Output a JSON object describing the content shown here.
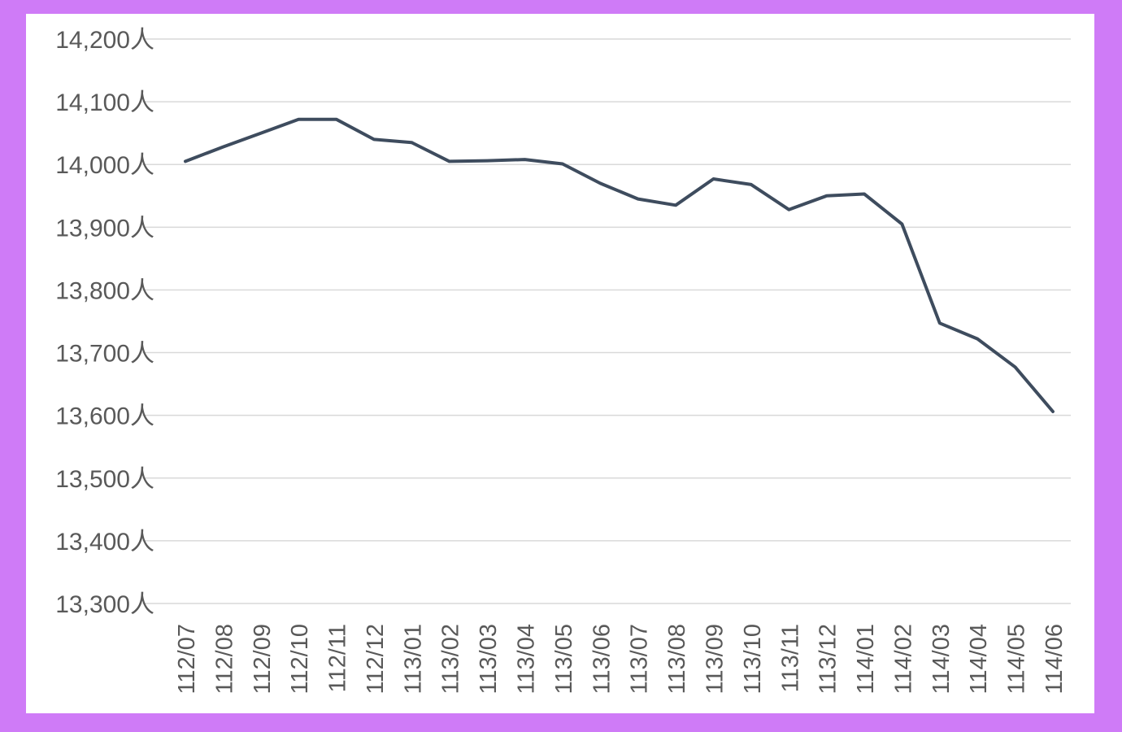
{
  "colors": {
    "frame": "#cf7bf7",
    "background": "#ffffff",
    "line": "#3e4c5e",
    "grid": "#d9d9d9",
    "text": "#595959"
  },
  "chart_data": {
    "type": "line",
    "title": "",
    "xlabel": "",
    "ylabel": "",
    "ylim": [
      13300,
      14200
    ],
    "ytick_step": 100,
    "ytick_suffix": "人",
    "grid": true,
    "legend": "none",
    "categories": [
      "112/07",
      "112/08",
      "112/09",
      "112/10",
      "112/11",
      "112/12",
      "113/01",
      "113/02",
      "113/03",
      "113/04",
      "113/05",
      "113/06",
      "113/07",
      "113/08",
      "113/09",
      "113/10",
      "113/11",
      "113/12",
      "114/01",
      "114/02",
      "114/03",
      "114/04",
      "114/05",
      "114/06"
    ],
    "series": [
      {
        "values": [
          14005,
          14028,
          14050,
          14072,
          14072,
          14040,
          14035,
          14005,
          14006,
          14008,
          14001,
          13970,
          13945,
          13935,
          13977,
          13968,
          13928,
          13950,
          13953,
          13905,
          13747,
          13722,
          13677,
          13606
        ]
      }
    ]
  }
}
